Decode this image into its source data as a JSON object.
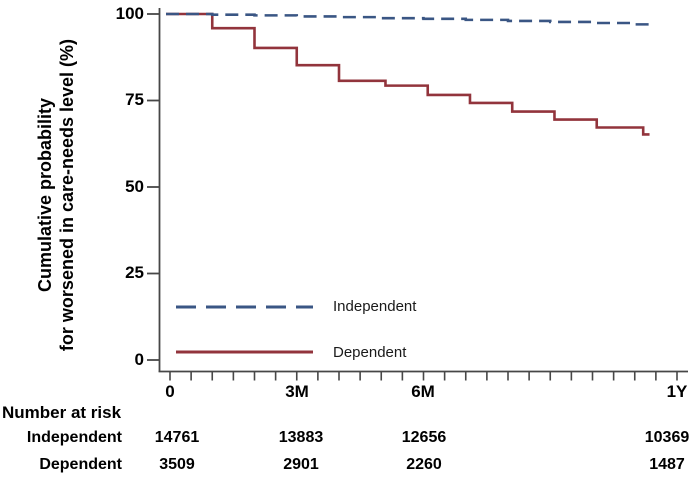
{
  "figure": {
    "y_axis_label_line1": "Cumulative probability",
    "y_axis_label_line2": "for worsened in care-needs level (%)"
  },
  "chart_data": {
    "type": "line",
    "subtype": "kaplan-meier step curves",
    "title": "",
    "xlabel": "",
    "ylabel": "Cumulative probability for worsened in care-needs level (%)",
    "ylim": [
      0,
      100
    ],
    "xlim_months": [
      0,
      12.25
    ],
    "grid": false,
    "legend_position": "inside lower-left",
    "minor_tick_interval_months": 0.5,
    "y_ticks": [
      {
        "label": "100",
        "value": 100
      },
      {
        "label": "75",
        "value": 75
      },
      {
        "label": "50",
        "value": 50
      },
      {
        "label": "25",
        "value": 25
      },
      {
        "label": "0",
        "value": 0
      }
    ],
    "x_ticks": [
      {
        "label": "0",
        "month": 0
      },
      {
        "label": "3M",
        "month": 3
      },
      {
        "label": "6M",
        "month": 6
      },
      {
        "label": "1Y",
        "month": 12
      }
    ],
    "legend": [
      {
        "name": "Independent",
        "line_style": "dashed",
        "color": "#3a5684"
      },
      {
        "name": "Dependent",
        "line_style": "solid",
        "color": "#92343c"
      }
    ],
    "series": [
      {
        "name": "Dependent",
        "step": true,
        "dash": false,
        "color": "#92343c",
        "end_month": 11.35,
        "points": [
          [
            0,
            100
          ],
          [
            1,
            95.9
          ],
          [
            2,
            90.2
          ],
          [
            3,
            85.2
          ],
          [
            4,
            80.7
          ],
          [
            5.1,
            79.3
          ],
          [
            6.1,
            76.6
          ],
          [
            7.1,
            74.3
          ],
          [
            8.1,
            71.8
          ],
          [
            9.1,
            69.5
          ],
          [
            10.1,
            67.2
          ],
          [
            11.2,
            65.2
          ]
        ]
      },
      {
        "name": "Independent",
        "step": true,
        "dash": true,
        "color": "#3a5684",
        "end_month": 11.35,
        "points": [
          [
            0,
            100
          ],
          [
            1,
            99.8
          ],
          [
            2,
            99.6
          ],
          [
            3,
            99.3
          ],
          [
            4,
            99.1
          ],
          [
            5,
            98.8
          ],
          [
            6,
            98.6
          ],
          [
            7,
            98.3
          ],
          [
            8,
            98.0
          ],
          [
            9,
            97.7
          ],
          [
            10,
            97.4
          ],
          [
            11,
            97.0
          ]
        ]
      }
    ]
  },
  "risk_table": {
    "title": "Number at risk",
    "columns": [
      "0",
      "3M",
      "6M",
      "1Y"
    ],
    "rows": [
      {
        "label": "Independent",
        "values": [
          "14761",
          "13883",
          "12656",
          "10369"
        ]
      },
      {
        "label": "Dependent",
        "values": [
          "3509",
          "2901",
          "2260",
          "1487"
        ]
      }
    ]
  },
  "style": {
    "axis_color": "#474747",
    "text_color": "#000000",
    "background": "#ffffff"
  }
}
